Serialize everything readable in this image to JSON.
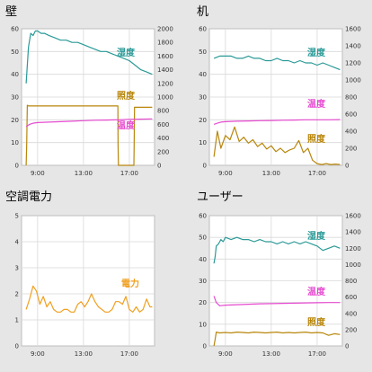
{
  "chart_data": [
    {
      "type": "line",
      "title": "壁",
      "ylim": [
        0,
        60
      ],
      "y2lim": [
        0,
        2000
      ],
      "yticks": [
        "0",
        "10",
        "20",
        "30",
        "40",
        "50",
        "60"
      ],
      "y2ticks": [
        "0",
        "200",
        "400",
        "600",
        "800",
        "1000",
        "1200",
        "1400",
        "1600",
        "1800",
        "2000"
      ],
      "xticks": [
        "9:00",
        "13:00",
        "17:00"
      ],
      "xtick_values": [
        9,
        13,
        17
      ],
      "xlim": [
        7.6,
        19.2
      ],
      "grid": true,
      "series": [
        {
          "name": "湿度",
          "color": "#2a9a97",
          "axis": "left",
          "x": [
            8.0,
            8.2,
            8.4,
            8.6,
            8.8,
            9.0,
            9.3,
            9.6,
            10.0,
            10.5,
            11.0,
            11.5,
            12.0,
            12.5,
            13.0,
            13.5,
            14.0,
            14.5,
            15.0,
            15.5,
            16.0,
            16.5,
            17.0,
            17.5,
            18.0,
            18.5,
            19.0
          ],
          "y": [
            36,
            52,
            58,
            57,
            59,
            59,
            58,
            58,
            57,
            56,
            55,
            55,
            54,
            54,
            53,
            52,
            51,
            50,
            50,
            49,
            48,
            47,
            46,
            44,
            42,
            41,
            40
          ]
        },
        {
          "name": "照度",
          "color": "#b8860b",
          "axis": "right",
          "x": [
            8.0,
            8.05,
            8.1,
            8.2,
            16.0,
            16.02,
            16.05,
            17.4,
            17.42,
            17.45,
            19.0
          ],
          "y": [
            0,
            300,
            880,
            870,
            870,
            300,
            0,
            0,
            300,
            850,
            850
          ]
        },
        {
          "name": "温度",
          "color": "#e64bd0",
          "axis": "left",
          "x": [
            8.0,
            8.3,
            8.6,
            9.0,
            10.0,
            11.0,
            12.0,
            13.0,
            14.0,
            15.0,
            16.0,
            17.0,
            18.0,
            19.0
          ],
          "y": [
            17,
            18,
            18.5,
            18.8,
            19,
            19.2,
            19.4,
            19.6,
            19.8,
            19.9,
            20,
            20.2,
            20.3,
            20.4
          ]
        }
      ]
    },
    {
      "type": "line",
      "title": "机",
      "ylim": [
        0,
        60
      ],
      "y2lim": [
        0,
        1600
      ],
      "yticks": [
        "0",
        "10",
        "20",
        "30",
        "40",
        "50",
        "60"
      ],
      "y2ticks": [
        "0",
        "200",
        "400",
        "600",
        "800",
        "1000",
        "1200",
        "1400",
        "1600"
      ],
      "xticks": [
        "9:00",
        "13:00",
        "17:00"
      ],
      "xtick_values": [
        9,
        13,
        17
      ],
      "xlim": [
        7.6,
        19.2
      ],
      "grid": true,
      "series": [
        {
          "name": "湿度",
          "color": "#2a9a97",
          "axis": "left",
          "x": [
            8.0,
            8.5,
            9.0,
            9.5,
            10.0,
            10.5,
            11.0,
            11.5,
            12.0,
            12.5,
            13.0,
            13.5,
            14.0,
            14.5,
            15.0,
            15.5,
            16.0,
            16.5,
            17.0,
            17.5,
            18.0,
            18.5,
            19.0
          ],
          "y": [
            47,
            48,
            48,
            48,
            47,
            47,
            48,
            47,
            47,
            46,
            46,
            47,
            46,
            46,
            45,
            46,
            45,
            45,
            44,
            45,
            44,
            43,
            42
          ]
        },
        {
          "name": "温度",
          "color": "#e64bd0",
          "axis": "left",
          "x": [
            8.0,
            8.3,
            8.6,
            9.0,
            10.0,
            11.0,
            12.0,
            13.0,
            14.0,
            15.0,
            16.0,
            17.0,
            18.0,
            19.0
          ],
          "y": [
            18,
            18.5,
            19,
            19.2,
            19.4,
            19.5,
            19.6,
            19.7,
            19.8,
            19.9,
            20,
            20,
            20,
            20.1
          ]
        },
        {
          "name": "照度",
          "color": "#b8860b",
          "axis": "right",
          "x": [
            8.0,
            8.3,
            8.6,
            9.0,
            9.4,
            9.8,
            10.2,
            10.6,
            11.0,
            11.4,
            11.8,
            12.2,
            12.6,
            13.0,
            13.4,
            13.8,
            14.2,
            14.6,
            15.0,
            15.4,
            15.8,
            16.2,
            16.6,
            17.0,
            17.4,
            17.8,
            18.2,
            18.6,
            19.0
          ],
          "y": [
            100,
            400,
            200,
            350,
            300,
            450,
            280,
            330,
            260,
            300,
            220,
            260,
            190,
            230,
            160,
            200,
            150,
            180,
            200,
            290,
            150,
            200,
            60,
            20,
            10,
            20,
            10,
            15,
            10
          ]
        }
      ]
    },
    {
      "type": "line",
      "title": "空調電力",
      "ylim": [
        0,
        5
      ],
      "yticks": [
        "0",
        "1",
        "2",
        "3",
        "4",
        "5"
      ],
      "xticks": [
        "9:00",
        "13:00",
        "17:00"
      ],
      "xtick_values": [
        9,
        13,
        17
      ],
      "xlim": [
        7.6,
        19.2
      ],
      "grid": true,
      "series": [
        {
          "name": "電力",
          "color": "#f0a020",
          "axis": "left",
          "x": [
            8.0,
            8.3,
            8.6,
            8.9,
            9.2,
            9.5,
            9.8,
            10.1,
            10.4,
            10.7,
            11.0,
            11.3,
            11.6,
            11.9,
            12.2,
            12.5,
            12.8,
            13.1,
            13.4,
            13.7,
            14.0,
            14.3,
            14.6,
            14.9,
            15.2,
            15.5,
            15.8,
            16.1,
            16.4,
            16.7,
            17.0,
            17.3,
            17.6,
            17.9,
            18.2,
            18.5,
            18.8,
            19.0
          ],
          "y": [
            1.4,
            1.8,
            2.3,
            2.1,
            1.6,
            1.9,
            1.5,
            1.7,
            1.4,
            1.3,
            1.3,
            1.4,
            1.4,
            1.3,
            1.3,
            1.6,
            1.7,
            1.5,
            1.7,
            2.0,
            1.7,
            1.5,
            1.4,
            1.3,
            1.3,
            1.4,
            1.7,
            1.7,
            1.6,
            1.9,
            1.4,
            1.3,
            1.5,
            1.3,
            1.4,
            1.8,
            1.5,
            1.5
          ]
        }
      ]
    },
    {
      "type": "line",
      "title": "ユーザー",
      "ylim": [
        0,
        60
      ],
      "y2lim": [
        0,
        1600
      ],
      "yticks": [
        "0",
        "10",
        "20",
        "30",
        "40",
        "50",
        "60"
      ],
      "y2ticks": [
        "0",
        "200",
        "400",
        "600",
        "800",
        "1000",
        "1200",
        "1400",
        "1600"
      ],
      "xticks": [
        "9:00",
        "13:00",
        "17:00"
      ],
      "xtick_values": [
        9,
        13,
        17
      ],
      "xlim": [
        7.6,
        19.2
      ],
      "grid": true,
      "series": [
        {
          "name": "湿度",
          "color": "#2a9a97",
          "axis": "left",
          "x": [
            8.0,
            8.1,
            8.2,
            8.4,
            8.6,
            8.8,
            9.0,
            9.5,
            10.0,
            10.5,
            11.0,
            11.5,
            12.0,
            12.5,
            13.0,
            13.5,
            14.0,
            14.5,
            15.0,
            15.5,
            16.0,
            16.5,
            17.0,
            17.5,
            18.0,
            18.5,
            19.0
          ],
          "y": [
            38,
            41,
            46,
            47,
            49,
            48,
            50,
            49,
            50,
            49,
            49,
            48,
            49,
            48,
            48,
            47,
            48,
            47,
            48,
            47,
            48,
            47,
            46,
            44,
            45,
            46,
            45
          ]
        },
        {
          "name": "温度",
          "color": "#e64bd0",
          "axis": "left",
          "x": [
            8.0,
            8.2,
            8.5,
            9.0,
            10.0,
            11.0,
            12.0,
            13.0,
            14.0,
            15.0,
            16.0,
            17.0,
            18.0,
            19.0
          ],
          "y": [
            23,
            20,
            18.5,
            18.8,
            19,
            19.2,
            19.4,
            19.5,
            19.6,
            19.7,
            19.8,
            19.9,
            20,
            20
          ]
        },
        {
          "name": "照度",
          "color": "#b8860b",
          "axis": "right",
          "x": [
            8.0,
            8.1,
            8.2,
            8.5,
            9.0,
            9.5,
            10.0,
            10.5,
            11.0,
            11.5,
            12.0,
            12.5,
            13.0,
            13.5,
            14.0,
            14.5,
            15.0,
            15.5,
            16.0,
            16.5,
            17.0,
            17.5,
            18.0,
            18.5,
            19.0
          ],
          "y": [
            0,
            80,
            170,
            160,
            165,
            160,
            170,
            165,
            160,
            170,
            165,
            160,
            165,
            170,
            160,
            165,
            160,
            165,
            170,
            160,
            165,
            160,
            130,
            150,
            140
          ]
        }
      ]
    }
  ]
}
